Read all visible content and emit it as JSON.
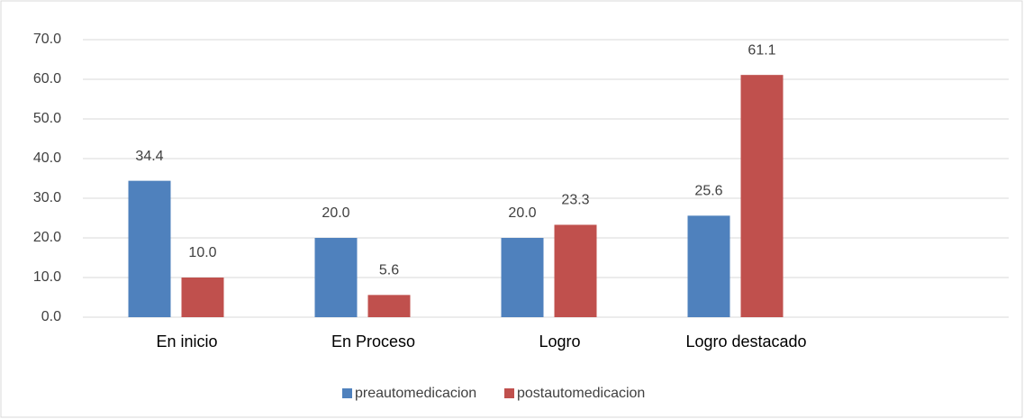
{
  "chart_data": {
    "type": "bar",
    "categories": [
      "En inicio",
      "En Proceso",
      "Logro",
      "Logro destacado",
      null
    ],
    "series": [
      {
        "name": "preautomedicacion",
        "color": "#4f81bd",
        "values": [
          34.4,
          20,
          20,
          25.6,
          null
        ],
        "value_labels": [
          "34.4",
          "20.0",
          "20.0",
          "25.6",
          null
        ]
      },
      {
        "name": "postautomedicacion",
        "color": "#c0504d",
        "values": [
          10,
          5.6,
          23.3,
          61.1,
          null
        ],
        "value_labels": [
          "10.0",
          "5.6",
          "23.3",
          "61.1",
          null
        ]
      }
    ],
    "ylim": [
      0,
      70
    ],
    "yticks": [
      {
        "value": 0,
        "label": "0.0"
      },
      {
        "value": 10,
        "label": "10.0"
      },
      {
        "value": 20,
        "label": "20.0"
      },
      {
        "value": 30,
        "label": "30.0"
      },
      {
        "value": 40,
        "label": "40.0"
      },
      {
        "value": 50,
        "label": "50.0"
      },
      {
        "value": 60,
        "label": "60.0"
      },
      {
        "value": 70,
        "label": "70.0"
      }
    ],
    "grid": true,
    "legend": "bottom"
  }
}
